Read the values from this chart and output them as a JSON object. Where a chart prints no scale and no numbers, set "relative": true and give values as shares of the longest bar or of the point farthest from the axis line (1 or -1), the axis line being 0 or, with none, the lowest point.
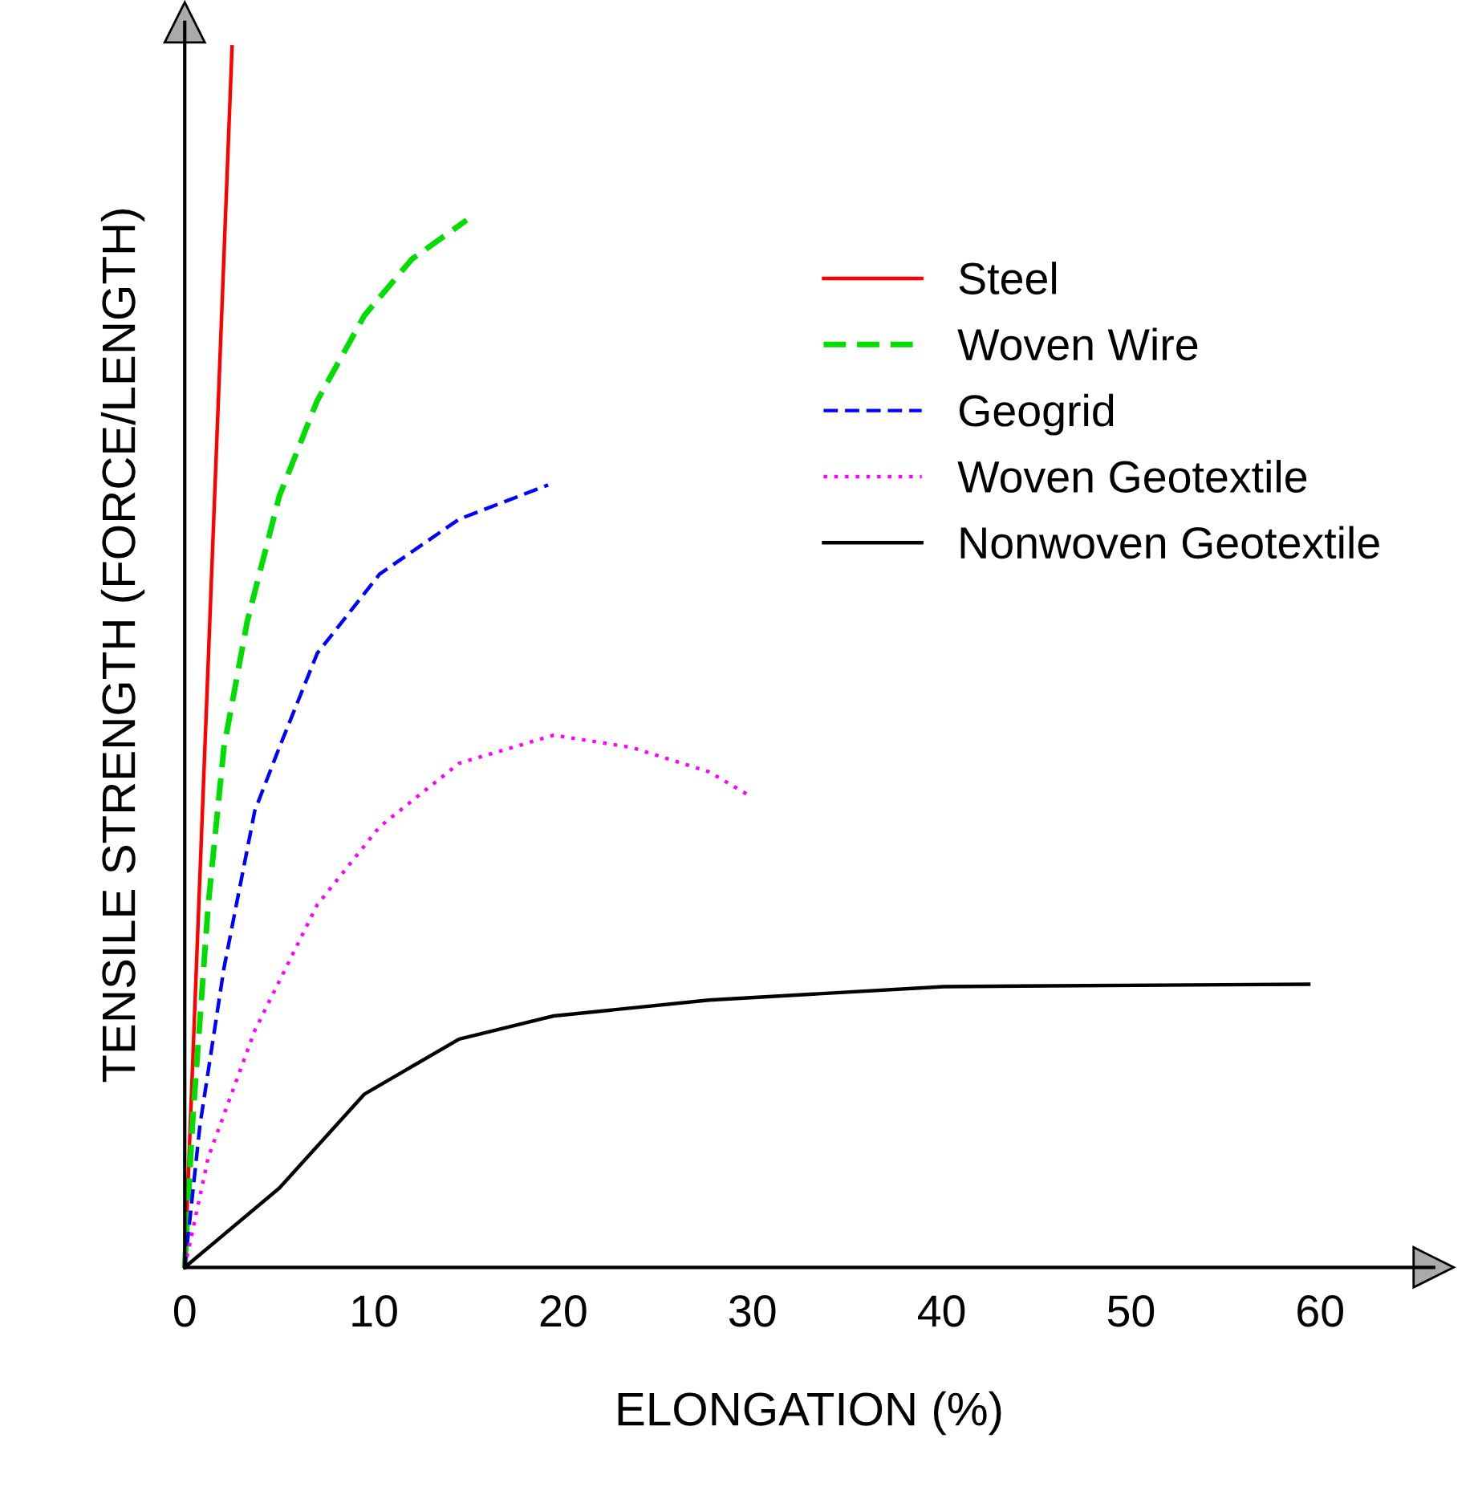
{
  "chart_data": {
    "type": "line",
    "relative": true,
    "xlabel": "ELONGATION (%)",
    "ylabel": "TENSILE STRENGTH (FORCE/LENGTH)",
    "xlim": [
      0,
      66
    ],
    "xticks": [
      0,
      10,
      20,
      30,
      40,
      50,
      60
    ],
    "grid": false,
    "legend": "top right",
    "marker": "none",
    "series": [
      {
        "name": "Steel",
        "color": "#ff0000",
        "line_style": "solid",
        "x": [
          0,
          2.5
        ],
        "values": [
          0,
          1
        ]
      },
      {
        "name": "Woven Wire",
        "color": "#00dd00",
        "line_style": "dashed",
        "x": [
          0,
          0.4,
          1.24,
          2.07,
          3.3,
          5,
          7,
          9.5,
          12,
          14.9
        ],
        "values": [
          0,
          0.116,
          0.297,
          0.426,
          0.529,
          0.632,
          0.71,
          0.78,
          0.826,
          0.858
        ]
      },
      {
        "name": "Geogrid",
        "color": "#0000ff",
        "line_style": "dashed",
        "x": [
          0,
          0.8,
          2.07,
          3.7,
          5,
          7,
          10.3,
          14.5,
          19.2
        ],
        "values": [
          0,
          0.116,
          0.245,
          0.374,
          0.426,
          0.503,
          0.568,
          0.613,
          0.641
        ]
      },
      {
        "name": "Woven Geotextile",
        "color": "#ff00ff",
        "line_style": "dotted",
        "x": [
          0,
          1.24,
          3.7,
          7,
          10.3,
          14.5,
          19.5,
          23.6,
          27.7,
          30
        ],
        "values": [
          0,
          0.09,
          0.194,
          0.297,
          0.361,
          0.413,
          0.436,
          0.426,
          0.406,
          0.385
        ]
      },
      {
        "name": "Nonwoven Geotextile",
        "color": "#000000",
        "line_style": "solid",
        "x": [
          0,
          5,
          9.5,
          14.5,
          19.5,
          27.7,
          40.1,
          59.4
        ],
        "values": [
          0,
          0.065,
          0.142,
          0.187,
          0.206,
          0.219,
          0.23,
          0.232
        ]
      }
    ]
  }
}
